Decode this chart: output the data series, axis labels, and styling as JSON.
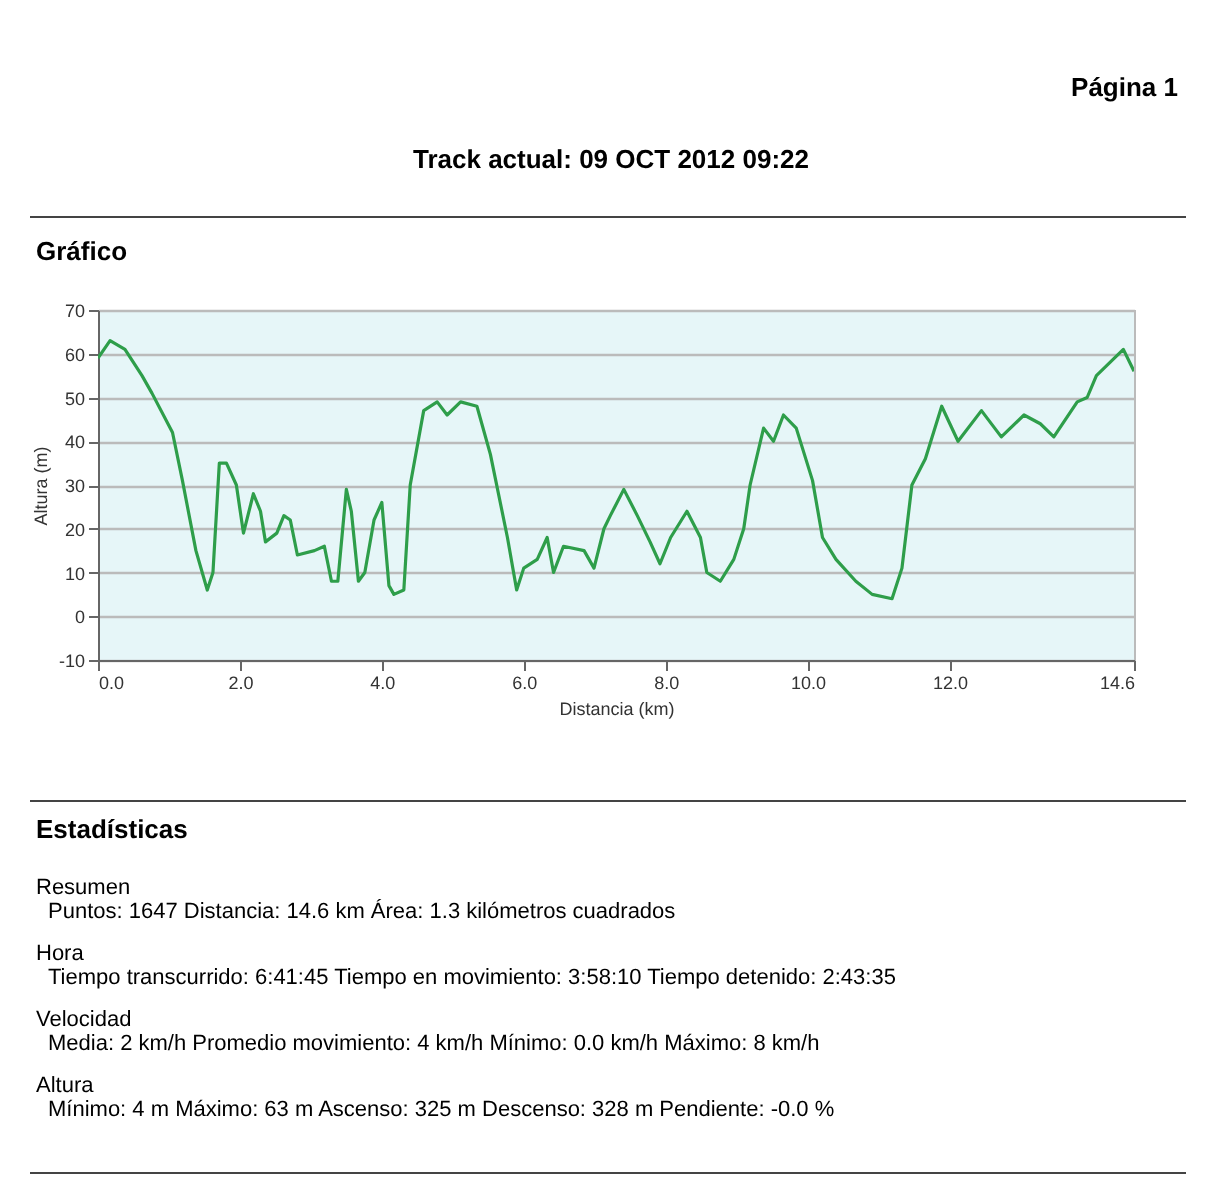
{
  "chart_data": {
    "type": "line",
    "title": "Track actual: 09 OCT 2012 09:22",
    "xlabel": "Distancia   (km)",
    "ylabel": "Altura (m)",
    "annotations": [
      "Página 1",
      "Gráfico",
      "Estadísticas",
      "Resumen",
      "Puntos: 1647  Distancia: 14.6 km  Área: 1.3 kilómetros cuadrados",
      "Hora",
      "Tiempo transcurrido: 6:41:45  Tiempo en movimiento: 3:58:10  Tiempo detenido: 2:43:35",
      "Velocidad",
      "Media: 2 km/h  Promedio movimiento: 4 km/h  Mínimo: 0.0 km/h  Máximo: 8 km/h",
      "Altura",
      "Mínimo: 4 m  Máximo: 63 m  Ascenso: 325 m  Descenso: 328 m  Pendiente: -0.0 %"
    ],
    "x": [
      0,
      0.17,
      0.38,
      0.62,
      0.76,
      1.05,
      1.19,
      1.38,
      1.54,
      1.62,
      1.71,
      1.81,
      1.95,
      2.05,
      2.19,
      2.29,
      2.36,
      2.52,
      2.62,
      2.71,
      2.81,
      3.05,
      3.19,
      3.29,
      3.38,
      3.5,
      3.57,
      3.67,
      3.76,
      3.89,
      4.0,
      4.1,
      4.17,
      4.31,
      4.4,
      4.59,
      4.78,
      4.92,
      5.11,
      5.34,
      5.53,
      5.77,
      5.9,
      6.0,
      6.19,
      6.33,
      6.42,
      6.56,
      6.85,
      6.99,
      7.13,
      7.22,
      7.41,
      7.6,
      7.78,
      7.92,
      8.07,
      8.3,
      8.49,
      8.58,
      8.77,
      8.96,
      9.1,
      9.19,
      9.38,
      9.52,
      9.66,
      9.84,
      10.07,
      10.21,
      10.4,
      10.68,
      10.91,
      11.19,
      11.33,
      11.47,
      11.66,
      11.89,
      12.12,
      12.45,
      12.73,
      13.05,
      13.28,
      13.47,
      13.8,
      13.94,
      14.07,
      14.45,
      14.6
    ],
    "series": [
      {
        "color": "#2e9e4a",
        "values": [
          59,
          63,
          61,
          55,
          51,
          42,
          31,
          15,
          6,
          10,
          35,
          35,
          30,
          19,
          28,
          24,
          17,
          19,
          23,
          22,
          14,
          15,
          16,
          8,
          8,
          29,
          24,
          8,
          10,
          22,
          26,
          7,
          5,
          6,
          30,
          47,
          49,
          46,
          49,
          48,
          37,
          18,
          6,
          11,
          13,
          18,
          10,
          16,
          15,
          11,
          20,
          23,
          29,
          23,
          17,
          12,
          18,
          24,
          18,
          10,
          8,
          13,
          20,
          30,
          43,
          40,
          46,
          43,
          31,
          18,
          13,
          8,
          5,
          4,
          11,
          30,
          36,
          48,
          40,
          47,
          41,
          46,
          44,
          41,
          49,
          50,
          55,
          61,
          56
        ]
      }
    ],
    "xlim": [
      0,
      14.6
    ],
    "xticks": [
      {
        "value": 0,
        "label": "0.0"
      },
      {
        "value": 2,
        "label": "2.0"
      },
      {
        "value": 4,
        "label": "4.0"
      },
      {
        "value": 6,
        "label": "6.0"
      },
      {
        "value": 8,
        "label": "8.0"
      },
      {
        "value": 10,
        "label": "10.0"
      },
      {
        "value": 12,
        "label": "12.0"
      },
      {
        "value": 14.6,
        "label": "14.6"
      }
    ],
    "ylim": [
      -10,
      70
    ],
    "yticks": [
      -10,
      0,
      10,
      20,
      30,
      40,
      50,
      60,
      70
    ],
    "grid": "y",
    "marker": "none",
    "line_style": "solid"
  }
}
